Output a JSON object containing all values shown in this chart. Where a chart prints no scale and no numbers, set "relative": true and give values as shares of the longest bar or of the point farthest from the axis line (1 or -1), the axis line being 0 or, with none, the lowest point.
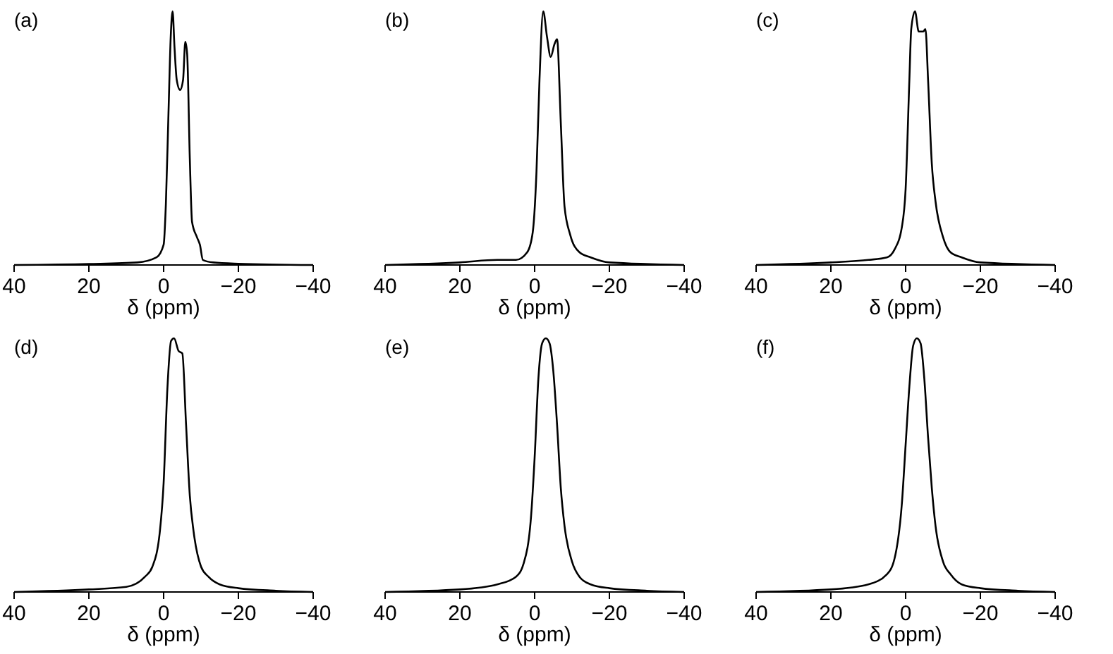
{
  "chart_data": [
    {
      "type": "line",
      "title": "(a)",
      "xlabel": "δ (ppm)",
      "relative": true,
      "color": "#000000",
      "xlim": [
        40,
        -40
      ],
      "xticks": [
        40,
        20,
        0,
        -20,
        -40
      ],
      "x": [
        40,
        20,
        7,
        1.9,
        0,
        -0.6,
        -1.3,
        -1.9,
        -2.4,
        -2.9,
        -3.5,
        -4.4,
        -5.2,
        -5.8,
        -6.3,
        -7,
        -7.6,
        -8.9,
        -9.7,
        -10.5,
        -13.3,
        -20,
        -40
      ],
      "values": [
        0,
        0.004,
        0.01,
        0.03,
        0.08,
        0.24,
        0.6,
        0.9,
        1,
        0.86,
        0.73,
        0.69,
        0.73,
        0.88,
        0.83,
        0.42,
        0.17,
        0.11,
        0.08,
        0.02,
        0.01,
        0.005,
        0
      ]
    },
    {
      "type": "line",
      "title": "(b)",
      "xlabel": "δ (ppm)",
      "relative": true,
      "color": "#000000",
      "xlim": [
        40,
        -40
      ],
      "xticks": [
        40,
        20,
        0,
        -20,
        -40
      ],
      "x": [
        40,
        20,
        10,
        5,
        2,
        0.5,
        -0.5,
        -1.3,
        -2.3,
        -3.3,
        -4.3,
        -5.3,
        -6,
        -7,
        -8,
        -9.5,
        -12,
        -15,
        -20,
        -40
      ],
      "values": [
        0,
        0.01,
        0.02,
        0.02,
        0.05,
        0.13,
        0.37,
        0.73,
        1,
        0.9,
        0.82,
        0.87,
        0.89,
        0.56,
        0.23,
        0.12,
        0.05,
        0.03,
        0.01,
        0
      ]
    },
    {
      "type": "line",
      "title": "(c)",
      "xlabel": "δ (ppm)",
      "relative": true,
      "color": "#000000",
      "xlim": [
        40,
        -40
      ],
      "xticks": [
        40,
        20,
        0,
        -20,
        -40
      ],
      "x": [
        40,
        20,
        10,
        5,
        3,
        1,
        0,
        -1,
        -1.5,
        -2.5,
        -3.5,
        -4.7,
        -5.3,
        -6,
        -7,
        -8,
        -10,
        -12,
        -15,
        -20,
        -40
      ],
      "values": [
        0,
        0.01,
        0.02,
        0.03,
        0.06,
        0.15,
        0.3,
        0.73,
        0.93,
        1,
        0.92,
        0.92,
        0.93,
        0.73,
        0.4,
        0.25,
        0.11,
        0.05,
        0.03,
        0.01,
        0
      ]
    },
    {
      "type": "line",
      "title": "(d)",
      "xlabel": "δ (ppm)",
      "relative": true,
      "color": "#000000",
      "xlim": [
        40,
        -40
      ],
      "xticks": [
        40,
        20,
        0,
        -20,
        -40
      ],
      "x": [
        40,
        20,
        10,
        5,
        3,
        1,
        0,
        -1,
        -2,
        -2.8,
        -4,
        -5,
        -6,
        -7,
        -8,
        -10,
        -12,
        -15,
        -20,
        -30,
        -40
      ],
      "values": [
        0,
        0.01,
        0.02,
        0.06,
        0.1,
        0.24,
        0.43,
        0.8,
        0.99,
        1,
        0.95,
        0.94,
        0.66,
        0.38,
        0.24,
        0.1,
        0.06,
        0.03,
        0.015,
        0.005,
        0
      ]
    },
    {
      "type": "line",
      "title": "(e)",
      "xlabel": "δ (ppm)",
      "relative": true,
      "color": "#000000",
      "xlim": [
        40,
        -40
      ],
      "xticks": [
        40,
        20,
        0,
        -20,
        -40
      ],
      "x": [
        40,
        20,
        10,
        5,
        3,
        1,
        0,
        -1,
        -2,
        -3,
        -4,
        -5,
        -6,
        -7,
        -8,
        -10,
        -12,
        -15,
        -20,
        -30,
        -40
      ],
      "values": [
        0,
        0.01,
        0.03,
        0.06,
        0.11,
        0.29,
        0.53,
        0.84,
        0.98,
        1,
        0.98,
        0.87,
        0.66,
        0.41,
        0.26,
        0.12,
        0.06,
        0.03,
        0.015,
        0.005,
        0
      ]
    },
    {
      "type": "line",
      "title": "(f)",
      "xlabel": "δ (ppm)",
      "relative": true,
      "color": "#000000",
      "xlim": [
        40,
        -40
      ],
      "xticks": [
        40,
        20,
        0,
        -20,
        -40
      ],
      "x": [
        40,
        20,
        10,
        5,
        3,
        1,
        0,
        -1,
        -2,
        -3,
        -4,
        -5,
        -6,
        -7,
        -8,
        -10,
        -12,
        -15,
        -20,
        -30,
        -40
      ],
      "values": [
        0,
        0.01,
        0.03,
        0.07,
        0.13,
        0.35,
        0.58,
        0.81,
        0.97,
        1,
        0.98,
        0.84,
        0.61,
        0.41,
        0.26,
        0.12,
        0.07,
        0.03,
        0.015,
        0.005,
        0
      ]
    }
  ]
}
